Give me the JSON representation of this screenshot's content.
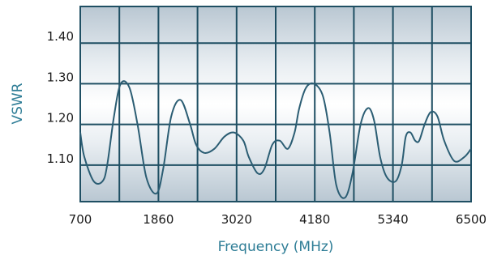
{
  "chart_data": {
    "type": "line",
    "title": "",
    "xlabel": "Frequency (MHz)",
    "ylabel": "VSWR",
    "xlim": [
      700,
      6500
    ],
    "ylim": [
      1.01,
      1.49
    ],
    "x_ticks": [
      700,
      1860,
      3020,
      4180,
      5340,
      6500
    ],
    "x_tick_labels": [
      "700",
      "1860",
      "3020",
      "4180",
      "5340",
      "6500"
    ],
    "y_ticks": [
      1.1,
      1.2,
      1.3,
      1.4
    ],
    "y_tick_labels": [
      "1.10",
      "1.20",
      "1.30",
      "1.40"
    ],
    "grid": true,
    "colors": {
      "line": "#2b5d73",
      "grid": "#1f4f63",
      "frame": "#1f4f63",
      "axis_title": "#2e7d96"
    },
    "series": [
      {
        "x": [
          700,
          760,
          900,
          1030,
          1100,
          1200,
          1300,
          1430,
          1550,
          1680,
          1830,
          1930,
          2050,
          2190,
          2330,
          2420,
          2540,
          2690,
          2840,
          2980,
          3120,
          3200,
          3330,
          3430,
          3550,
          3660,
          3780,
          3880,
          3950,
          4050,
          4170,
          4300,
          4400,
          4500,
          4630,
          4740,
          4860,
          4970,
          5060,
          5150,
          5250,
          5380,
          5470,
          5530,
          5600,
          5670,
          5730,
          5810,
          5900,
          6000,
          6100,
          6250,
          6400,
          6500
        ],
        "y": [
          1.18,
          1.12,
          1.06,
          1.06,
          1.1,
          1.22,
          1.3,
          1.29,
          1.2,
          1.07,
          1.03,
          1.09,
          1.22,
          1.26,
          1.2,
          1.15,
          1.13,
          1.14,
          1.17,
          1.18,
          1.16,
          1.12,
          1.08,
          1.09,
          1.15,
          1.16,
          1.14,
          1.18,
          1.24,
          1.29,
          1.3,
          1.27,
          1.18,
          1.05,
          1.02,
          1.08,
          1.2,
          1.24,
          1.21,
          1.12,
          1.07,
          1.06,
          1.1,
          1.17,
          1.18,
          1.16,
          1.16,
          1.2,
          1.23,
          1.22,
          1.16,
          1.11,
          1.12,
          1.14
        ]
      }
    ]
  }
}
